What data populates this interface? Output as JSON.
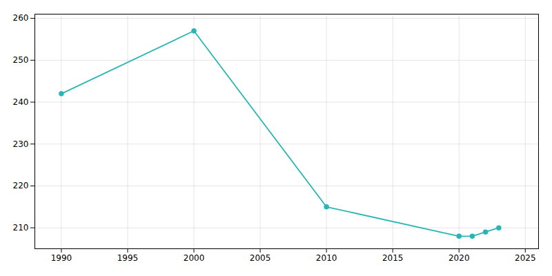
{
  "chart_data": {
    "type": "line",
    "x": [
      1990,
      2000,
      2010,
      2020,
      2021,
      2022,
      2023
    ],
    "values": [
      242,
      257,
      215,
      208,
      208,
      209,
      210
    ],
    "color": "#2ab5b5",
    "marker": "circle",
    "xlim": [
      1988,
      2026
    ],
    "ylim": [
      205,
      261
    ],
    "xticks": [
      1990,
      1995,
      2000,
      2005,
      2010,
      2015,
      2020,
      2025
    ],
    "yticks": [
      210,
      220,
      230,
      240,
      250,
      260
    ],
    "grid": true
  }
}
